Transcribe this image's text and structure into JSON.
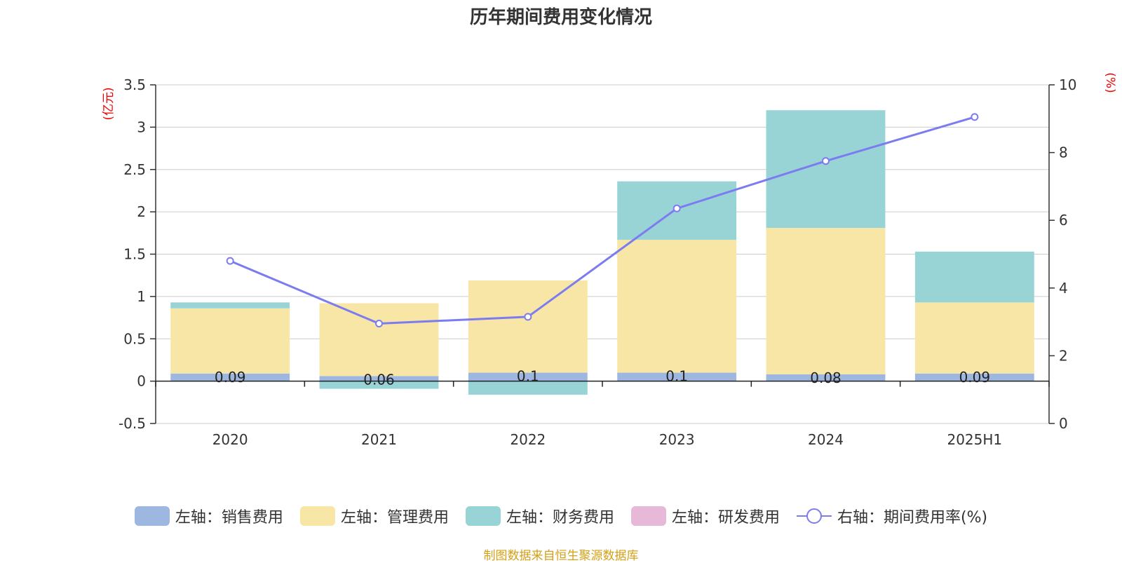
{
  "title": "历年期间费用变化情况",
  "source_note": "制图数据来自恒生聚源数据库",
  "left_axis_unit": "(亿元)",
  "right_axis_unit": "(%)",
  "chart_data": {
    "type": "bar",
    "stacked": true,
    "categories": [
      "2020",
      "2021",
      "2022",
      "2023",
      "2024",
      "2025H1"
    ],
    "left_axis": {
      "ylim": [
        -0.5,
        3.5
      ],
      "ticks": [
        -0.5,
        0,
        0.5,
        1,
        1.5,
        2,
        2.5,
        3,
        3.5
      ],
      "tick_labels": [
        "-0.5",
        "0",
        "0.5",
        "1",
        "1.5",
        "2",
        "2.5",
        "3",
        "3.5"
      ]
    },
    "right_axis": {
      "ylim": [
        0,
        10
      ],
      "ticks": [
        0,
        2,
        4,
        6,
        8,
        10
      ],
      "tick_labels": [
        "0",
        "2",
        "4",
        "6",
        "8",
        "10"
      ]
    },
    "grid": true,
    "legend_position": "bottom",
    "series": [
      {
        "name": "左轴：销售费用",
        "axis": "left",
        "type": "bar",
        "color": "#9db7e0",
        "values": [
          0.09,
          0.06,
          0.1,
          0.1,
          0.08,
          0.09
        ],
        "labels": [
          "0.09",
          "0.06",
          "0.1",
          "0.1",
          "0.08",
          "0.09"
        ]
      },
      {
        "name": "左轴：管理费用",
        "axis": "left",
        "type": "bar",
        "color": "#f7e6a6",
        "values": [
          0.77,
          0.86,
          1.09,
          1.57,
          1.73,
          0.84
        ]
      },
      {
        "name": "左轴：财务费用",
        "axis": "left",
        "type": "bar",
        "color": "#98d4d6",
        "values": [
          0.07,
          -0.09,
          -0.16,
          0.69,
          1.39,
          0.6
        ]
      },
      {
        "name": "左轴：研发费用",
        "axis": "left",
        "type": "bar",
        "color": "#e8b8d8",
        "values": [
          0,
          0,
          0,
          0,
          0,
          0
        ]
      },
      {
        "name": "右轴：期间费用率(%)",
        "axis": "right",
        "type": "line",
        "color": "#7c7cf0",
        "values": [
          4.8,
          2.95,
          3.15,
          6.35,
          7.75,
          9.05
        ]
      }
    ]
  }
}
